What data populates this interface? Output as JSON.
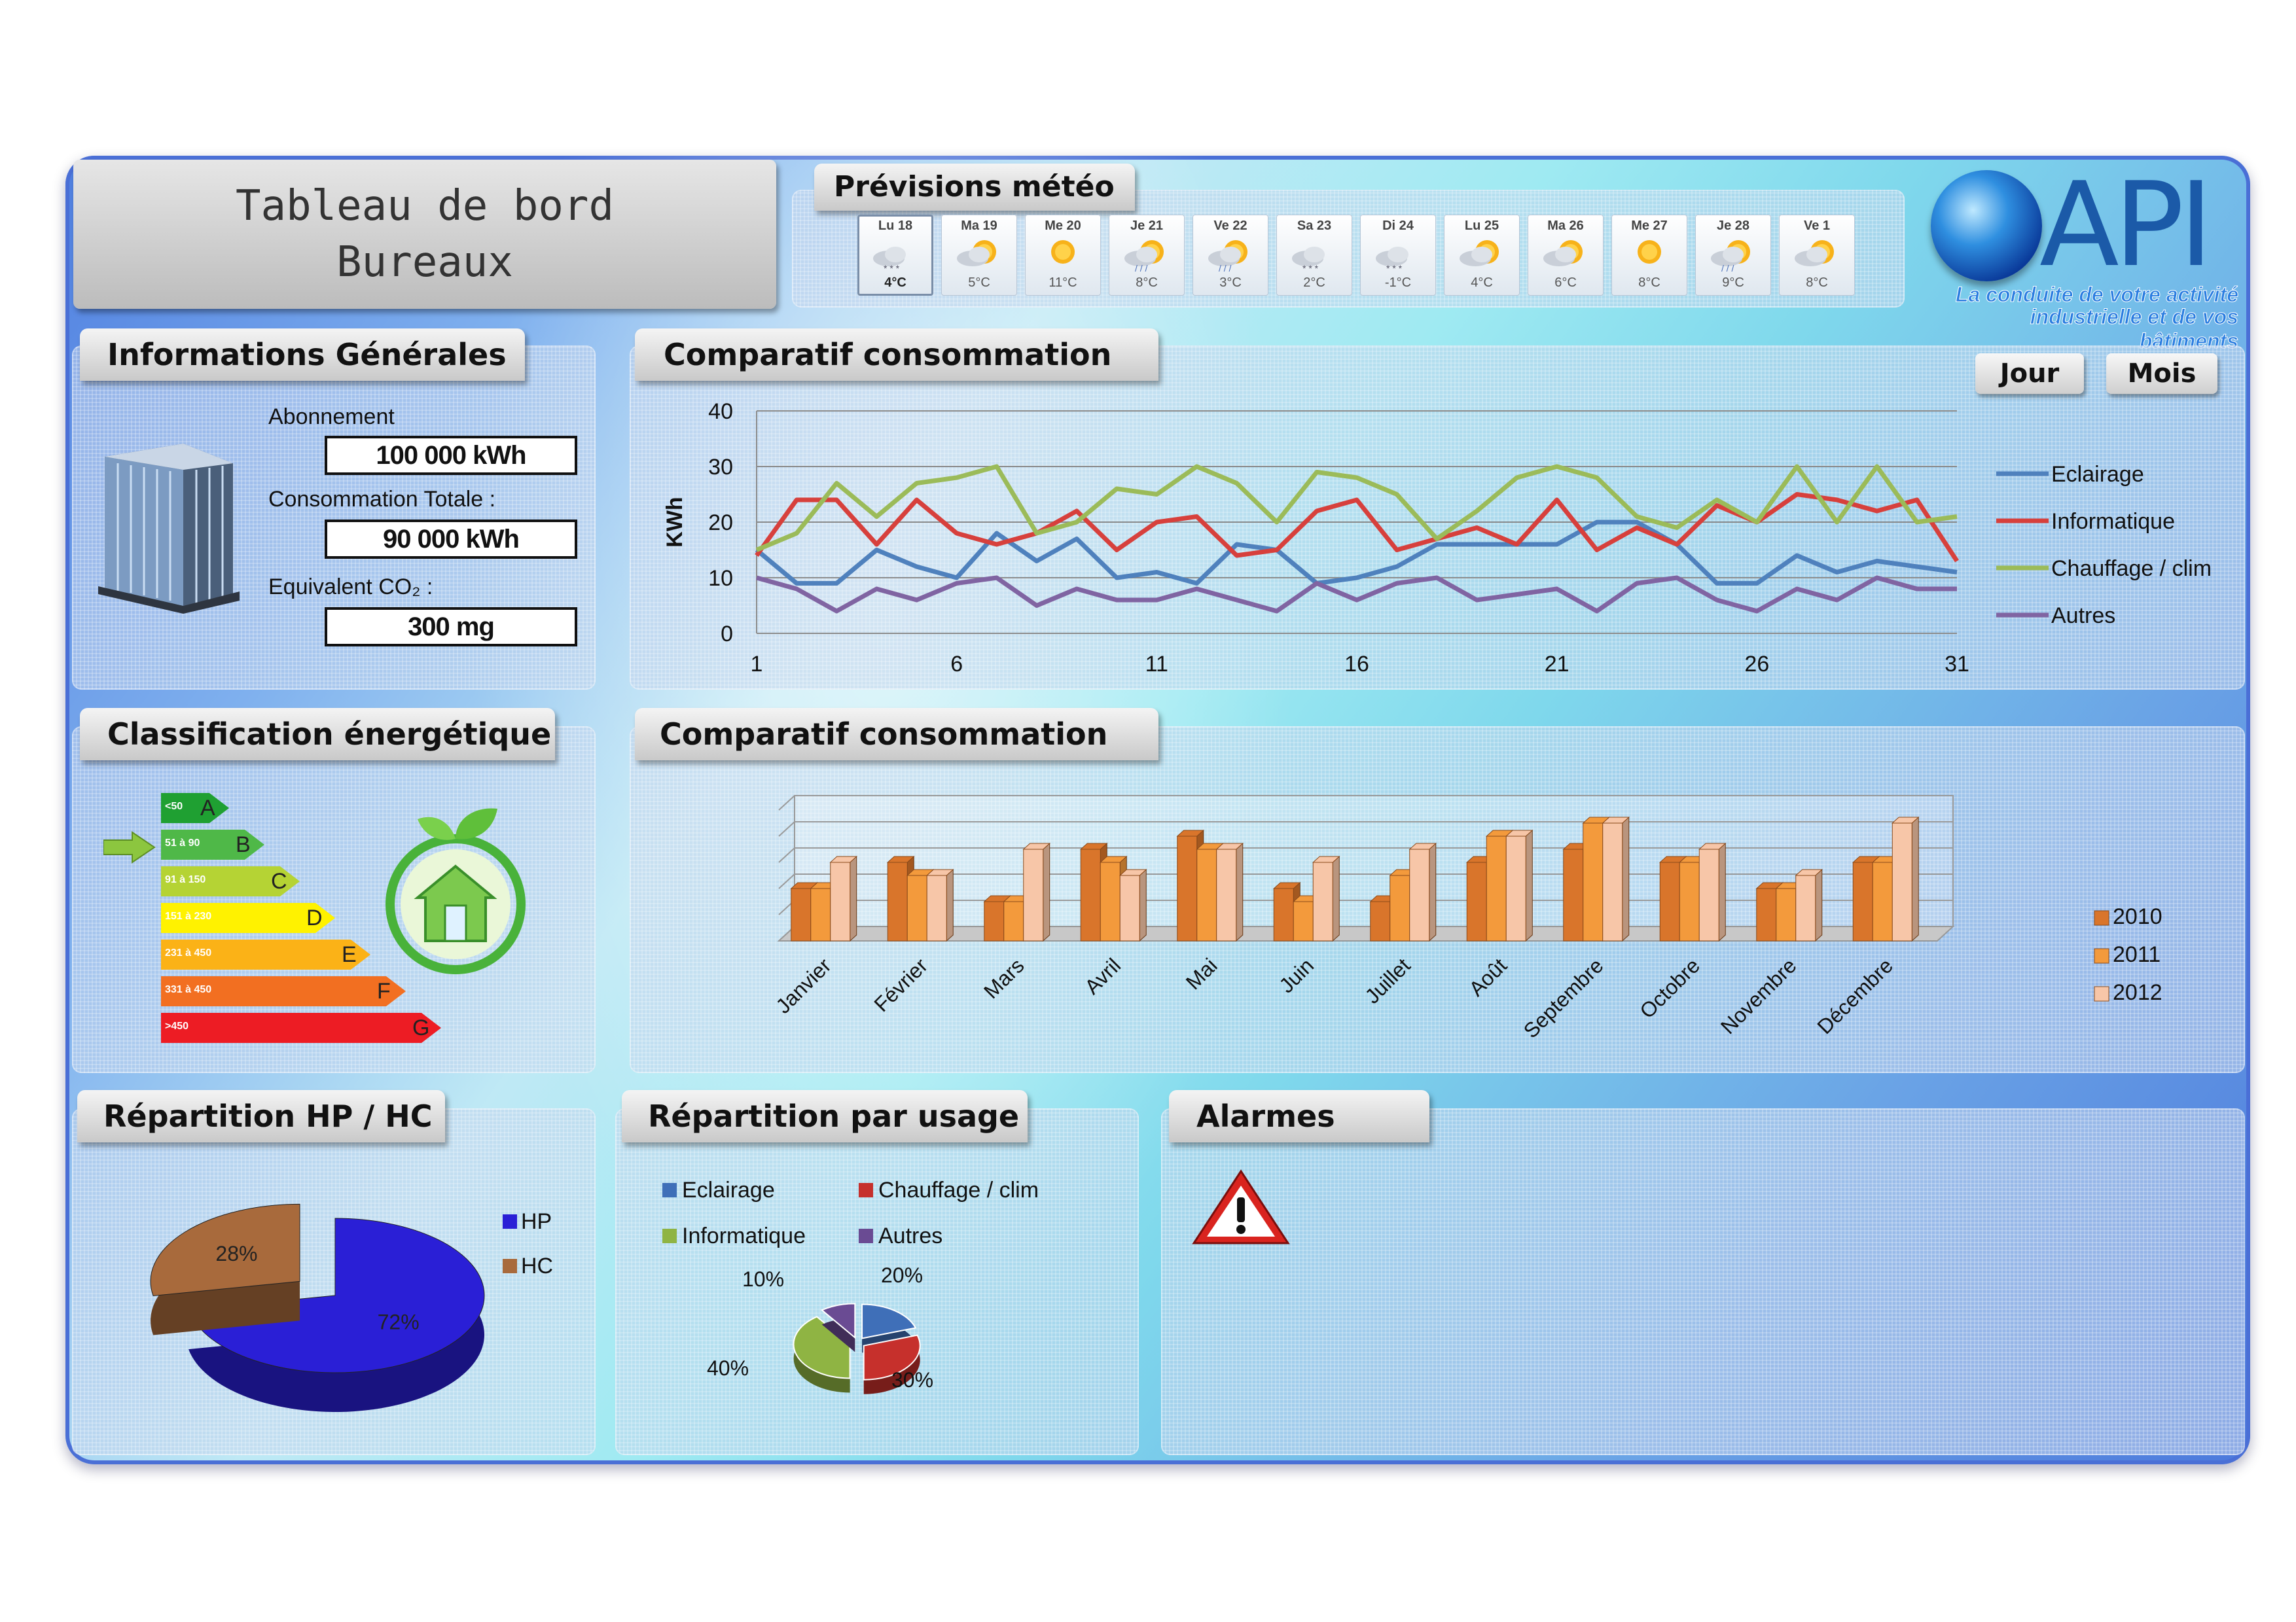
{
  "header": {
    "title_line1": "Tableau de bord",
    "title_line2": "Bureaux"
  },
  "weather": {
    "title": "Prévisions météo",
    "days": [
      {
        "day": "Lu 18",
        "temp": "4°C",
        "icon": "snow-cloud-icon",
        "selected": true
      },
      {
        "day": "Ma 19",
        "temp": "5°C",
        "icon": "sun-cloud-icon"
      },
      {
        "day": "Me 20",
        "temp": "11°C",
        "icon": "sun-icon"
      },
      {
        "day": "Je 21",
        "temp": "8°C",
        "icon": "sun-cloud-rain-icon"
      },
      {
        "day": "Ve 22",
        "temp": "3°C",
        "icon": "sun-cloud-rain-icon"
      },
      {
        "day": "Sa 23",
        "temp": "2°C",
        "icon": "cloud-snow-icon"
      },
      {
        "day": "Di 24",
        "temp": "-1°C",
        "icon": "cloud-snow-icon"
      },
      {
        "day": "Lu 25",
        "temp": "4°C",
        "icon": "sun-cloud-icon"
      },
      {
        "day": "Ma 26",
        "temp": "6°C",
        "icon": "sun-cloud-icon"
      },
      {
        "day": "Me 27",
        "temp": "8°C",
        "icon": "sun-icon"
      },
      {
        "day": "Je 28",
        "temp": "9°C",
        "icon": "sun-cloud-rain-icon"
      },
      {
        "day": "Ve 1",
        "temp": "8°C",
        "icon": "sun-cloud-icon"
      }
    ]
  },
  "logo": {
    "text": "API",
    "tagline1": "La conduite de votre activité",
    "tagline2": "industrielle et de vos bâtiments"
  },
  "info": {
    "title": "Informations Générales",
    "subscription_label": "Abonnement",
    "subscription_value": "100 000 kWh",
    "total_label": "Consommation Totale :",
    "total_value": "90 000 kWh",
    "co2_label": "Equivalent CO₂ :",
    "co2_value": "300 mg"
  },
  "buttons": {
    "day": "Jour",
    "month": "Mois"
  },
  "classification": {
    "title": "Classification énergétique",
    "current": "B",
    "classes": [
      {
        "range": "<50",
        "letter": "A",
        "color": "#1fa032"
      },
      {
        "range": "51 à 90",
        "letter": "B",
        "color": "#4fb848"
      },
      {
        "range": "91 à 150",
        "letter": "C",
        "color": "#b5d334"
      },
      {
        "range": "151 à 230",
        "letter": "D",
        "color": "#fff200"
      },
      {
        "range": "231 à 450",
        "letter": "E",
        "color": "#fbb217"
      },
      {
        "range": "331 à 450",
        "letter": "F",
        "color": "#f26f21"
      },
      {
        "range": ">450",
        "letter": "G",
        "color": "#ed1c24"
      }
    ]
  },
  "line_chart_title": "Comparatif consommation",
  "bar_chart_title": "Comparatif consommation",
  "hp_hc": {
    "title": "Répartition HP / HC"
  },
  "usage": {
    "title": "Répartition par usage"
  },
  "alarms": {
    "title": "Alarmes"
  },
  "chart_data": [
    {
      "type": "line",
      "title": "",
      "ylabel": "KWh",
      "xlabel": "",
      "ylim": [
        0,
        40
      ],
      "xlim": [
        1,
        31
      ],
      "yticks": [
        "0",
        "10",
        "20",
        "30",
        "40"
      ],
      "xticks": [
        "1",
        "6",
        "11",
        "16",
        "21",
        "26",
        "31"
      ],
      "x": [
        1,
        2,
        3,
        4,
        5,
        6,
        7,
        8,
        9,
        10,
        11,
        12,
        13,
        14,
        15,
        16,
        17,
        18,
        19,
        20,
        21,
        22,
        23,
        24,
        25,
        26,
        27,
        28,
        29,
        30,
        31
      ],
      "series": [
        {
          "name": "Eclairage",
          "color": "#4f81bd",
          "values": [
            15,
            9,
            9,
            15,
            12,
            10,
            18,
            13,
            17,
            10,
            11,
            9,
            16,
            15,
            9,
            10,
            12,
            16,
            16,
            16,
            16,
            20,
            20,
            16,
            9,
            9,
            14,
            11,
            13,
            12,
            11
          ]
        },
        {
          "name": "Informatique",
          "color": "#d7403c",
          "values": [
            14,
            24,
            24,
            16,
            24,
            18,
            16,
            18,
            22,
            15,
            20,
            21,
            14,
            15,
            22,
            24,
            15,
            17,
            19,
            16,
            24,
            15,
            19,
            16,
            23,
            20,
            25,
            24,
            22,
            24,
            13
          ]
        },
        {
          "name": "Chauffage / clim",
          "color": "#9bbb59",
          "values": [
            15,
            18,
            27,
            21,
            27,
            28,
            30,
            18,
            20,
            26,
            25,
            30,
            27,
            20,
            29,
            28,
            25,
            17,
            22,
            28,
            30,
            28,
            21,
            19,
            24,
            20,
            30,
            20,
            30,
            20,
            21
          ]
        },
        {
          "name": "Autres",
          "color": "#8064a2",
          "values": [
            10,
            8,
            4,
            8,
            6,
            9,
            10,
            5,
            8,
            6,
            6,
            8,
            6,
            4,
            9,
            6,
            9,
            10,
            6,
            7,
            8,
            4,
            9,
            10,
            6,
            4,
            8,
            6,
            10,
            8,
            8
          ]
        }
      ],
      "legend": "right"
    },
    {
      "type": "bar",
      "title": "",
      "ylim": [
        0,
        10
      ],
      "categories": [
        "Janvier",
        "Février",
        "Mars",
        "Avril",
        "Mai",
        "Juin",
        "Juillet",
        "Août",
        "Septembre",
        "Octobre",
        "Novembre",
        "Décembre"
      ],
      "series": [
        {
          "name": "2010",
          "color": "#d9752b",
          "values": [
            4,
            6,
            3,
            7,
            8,
            4,
            3,
            6,
            7,
            6,
            4,
            6
          ]
        },
        {
          "name": "2011",
          "color": "#f39a3c",
          "values": [
            4,
            5,
            3,
            6,
            7,
            3,
            5,
            8,
            9,
            6,
            4,
            6
          ]
        },
        {
          "name": "2012",
          "color": "#f7c6a8",
          "values": [
            6,
            5,
            7,
            5,
            7,
            6,
            7,
            8,
            9,
            7,
            5,
            9
          ]
        }
      ],
      "legend": "right"
    },
    {
      "type": "pie",
      "title": "",
      "series": [
        {
          "name": "HP",
          "value": 72,
          "label": "72%",
          "color": "#2a1fd6"
        },
        {
          "name": "HC",
          "value": 28,
          "label": "28%",
          "color": "#a86a3c"
        }
      ],
      "legend": "right"
    },
    {
      "type": "pie",
      "title": "",
      "series": [
        {
          "name": "Eclairage",
          "value": 20,
          "label": "20%",
          "color": "#3f6fb8"
        },
        {
          "name": "Chauffage / clim",
          "value": 30,
          "label": "30%",
          "color": "#c6302c"
        },
        {
          "name": "Informatique",
          "value": 40,
          "label": "40%",
          "color": "#8fb443"
        },
        {
          "name": "Autres",
          "value": 10,
          "label": "10%",
          "color": "#6a4b93"
        }
      ],
      "legend": "top"
    }
  ]
}
